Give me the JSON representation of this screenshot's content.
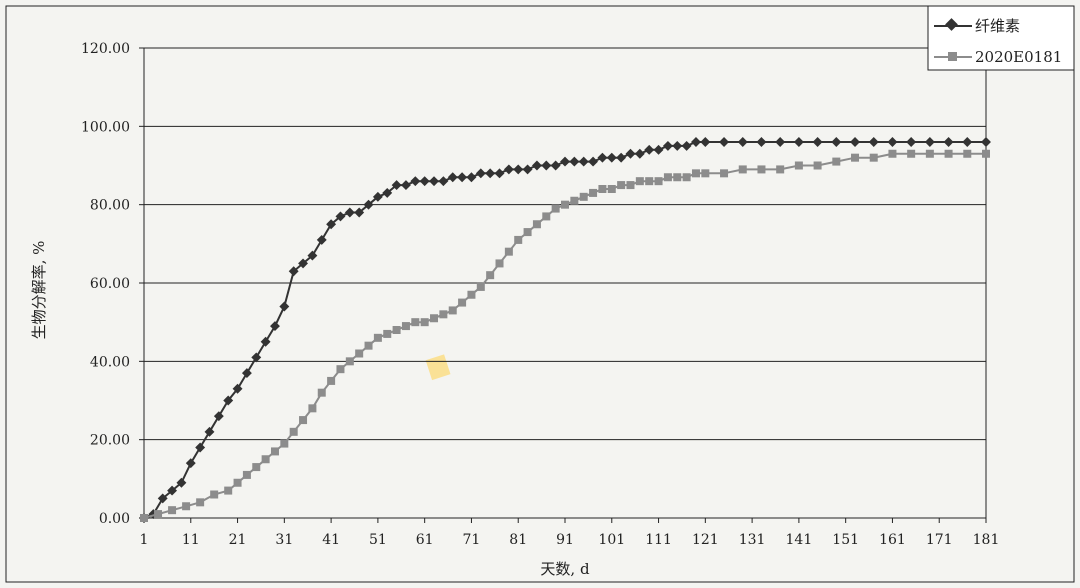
{
  "chart_data": {
    "type": "line",
    "title": "",
    "xlabel": "天数, d",
    "ylabel": "生物分解率, %",
    "x_ticks": [
      "1",
      "11",
      "21",
      "31",
      "41",
      "51",
      "61",
      "71",
      "81",
      "91",
      "101",
      "111",
      "121",
      "131",
      "141",
      "151",
      "161",
      "171",
      "181"
    ],
    "y_ticks": [
      "0.00",
      "20.00",
      "40.00",
      "60.00",
      "80.00",
      "100.00",
      "120.00"
    ],
    "xlim": [
      1,
      181
    ],
    "ylim": [
      0,
      120
    ],
    "grid": "horizontal",
    "legend_position": "top-right",
    "series": [
      {
        "name": "纤维素",
        "color": "#333333",
        "marker": "diamond",
        "points": [
          [
            1,
            0
          ],
          [
            3,
            1
          ],
          [
            5,
            5
          ],
          [
            7,
            7
          ],
          [
            9,
            9
          ],
          [
            11,
            14
          ],
          [
            13,
            18
          ],
          [
            15,
            22
          ],
          [
            17,
            26
          ],
          [
            19,
            30
          ],
          [
            21,
            33
          ],
          [
            23,
            37
          ],
          [
            25,
            41
          ],
          [
            27,
            45
          ],
          [
            29,
            49
          ],
          [
            31,
            54
          ],
          [
            33,
            63
          ],
          [
            35,
            65
          ],
          [
            37,
            67
          ],
          [
            39,
            71
          ],
          [
            41,
            75
          ],
          [
            43,
            77
          ],
          [
            45,
            78
          ],
          [
            47,
            78
          ],
          [
            49,
            80
          ],
          [
            51,
            82
          ],
          [
            53,
            83
          ],
          [
            55,
            85
          ],
          [
            57,
            85
          ],
          [
            59,
            86
          ],
          [
            61,
            86
          ],
          [
            63,
            86
          ],
          [
            65,
            86
          ],
          [
            67,
            87
          ],
          [
            69,
            87
          ],
          [
            71,
            87
          ],
          [
            73,
            88
          ],
          [
            75,
            88
          ],
          [
            77,
            88
          ],
          [
            79,
            89
          ],
          [
            81,
            89
          ],
          [
            83,
            89
          ],
          [
            85,
            90
          ],
          [
            87,
            90
          ],
          [
            89,
            90
          ],
          [
            91,
            91
          ],
          [
            93,
            91
          ],
          [
            95,
            91
          ],
          [
            97,
            91
          ],
          [
            99,
            92
          ],
          [
            101,
            92
          ],
          [
            103,
            92
          ],
          [
            105,
            93
          ],
          [
            107,
            93
          ],
          [
            109,
            94
          ],
          [
            111,
            94
          ],
          [
            113,
            95
          ],
          [
            115,
            95
          ],
          [
            117,
            95
          ],
          [
            119,
            96
          ],
          [
            121,
            96
          ],
          [
            125,
            96
          ],
          [
            129,
            96
          ],
          [
            133,
            96
          ],
          [
            137,
            96
          ],
          [
            141,
            96
          ],
          [
            145,
            96
          ],
          [
            149,
            96
          ],
          [
            153,
            96
          ],
          [
            157,
            96
          ],
          [
            161,
            96
          ],
          [
            165,
            96
          ],
          [
            169,
            96
          ],
          [
            173,
            96
          ],
          [
            177,
            96
          ],
          [
            181,
            96
          ]
        ]
      },
      {
        "name": "2020E0181",
        "color": "#8c8c8c",
        "marker": "square",
        "points": [
          [
            1,
            0
          ],
          [
            4,
            1
          ],
          [
            7,
            2
          ],
          [
            10,
            3
          ],
          [
            13,
            4
          ],
          [
            16,
            6
          ],
          [
            19,
            7
          ],
          [
            21,
            9
          ],
          [
            23,
            11
          ],
          [
            25,
            13
          ],
          [
            27,
            15
          ],
          [
            29,
            17
          ],
          [
            31,
            19
          ],
          [
            33,
            22
          ],
          [
            35,
            25
          ],
          [
            37,
            28
          ],
          [
            39,
            32
          ],
          [
            41,
            35
          ],
          [
            43,
            38
          ],
          [
            45,
            40
          ],
          [
            47,
            42
          ],
          [
            49,
            44
          ],
          [
            51,
            46
          ],
          [
            53,
            47
          ],
          [
            55,
            48
          ],
          [
            57,
            49
          ],
          [
            59,
            50
          ],
          [
            61,
            50
          ],
          [
            63,
            51
          ],
          [
            65,
            52
          ],
          [
            67,
            53
          ],
          [
            69,
            55
          ],
          [
            71,
            57
          ],
          [
            73,
            59
          ],
          [
            75,
            62
          ],
          [
            77,
            65
          ],
          [
            79,
            68
          ],
          [
            81,
            71
          ],
          [
            83,
            73
          ],
          [
            85,
            75
          ],
          [
            87,
            77
          ],
          [
            89,
            79
          ],
          [
            91,
            80
          ],
          [
            93,
            81
          ],
          [
            95,
            82
          ],
          [
            97,
            83
          ],
          [
            99,
            84
          ],
          [
            101,
            84
          ],
          [
            103,
            85
          ],
          [
            105,
            85
          ],
          [
            107,
            86
          ],
          [
            109,
            86
          ],
          [
            111,
            86
          ],
          [
            113,
            87
          ],
          [
            115,
            87
          ],
          [
            117,
            87
          ],
          [
            119,
            88
          ],
          [
            121,
            88
          ],
          [
            125,
            88
          ],
          [
            129,
            89
          ],
          [
            133,
            89
          ],
          [
            137,
            89
          ],
          [
            141,
            90
          ],
          [
            145,
            90
          ],
          [
            149,
            91
          ],
          [
            153,
            92
          ],
          [
            157,
            92
          ],
          [
            161,
            93
          ],
          [
            165,
            93
          ],
          [
            169,
            93
          ],
          [
            173,
            93
          ],
          [
            177,
            93
          ],
          [
            181,
            93
          ]
        ]
      }
    ]
  }
}
